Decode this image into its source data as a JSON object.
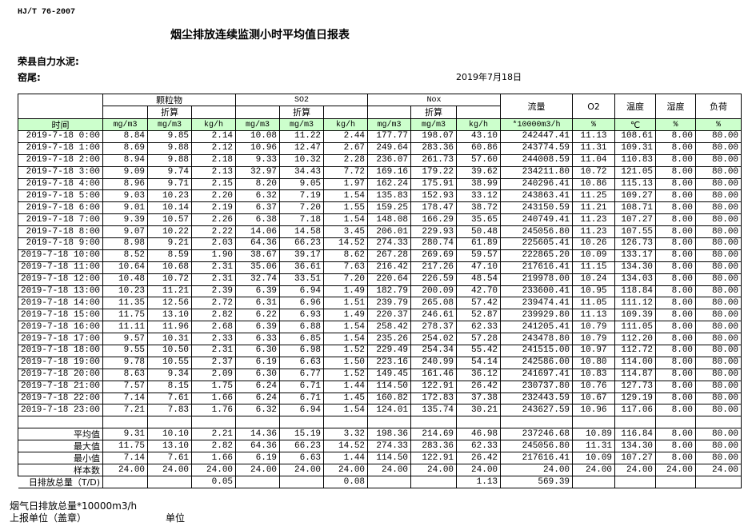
{
  "standard": "HJ/T  76-2007",
  "title": "烟尘排放连续监测小时平均值日报表",
  "company": "荣县自力水泥:",
  "kiln": "窑尾:",
  "date": "2019年7月18日",
  "header": {
    "particulate": "颗粒物",
    "so2": "SO2",
    "nox": "Nox",
    "converted": "折算",
    "flow": "流量",
    "o2": "O2",
    "temp": "温度",
    "humidity": "湿度",
    "load": "负荷",
    "time": "时间",
    "units": [
      "mg/m3",
      "mg/m3",
      "kg/h",
      "mg/m3",
      "mg/m3",
      "kg/h",
      "mg/m3",
      "mg/m3",
      "kg/h",
      "*10000m3/h",
      "%",
      "℃",
      "%",
      "%"
    ]
  },
  "rows": [
    [
      "2019-7-18 0:00",
      "8.84",
      "9.85",
      "2.14",
      "10.08",
      "11.22",
      "2.44",
      "177.77",
      "198.07",
      "43.10",
      "242447.41",
      "11.13",
      "108.61",
      "8.00",
      "80.00"
    ],
    [
      "2019-7-18 1:00",
      "8.69",
      "9.88",
      "2.12",
      "10.96",
      "12.47",
      "2.67",
      "249.64",
      "283.36",
      "60.86",
      "243774.59",
      "11.31",
      "109.31",
      "8.00",
      "80.00"
    ],
    [
      "2019-7-18 2:00",
      "8.94",
      "9.88",
      "2.18",
      "9.33",
      "10.32",
      "2.28",
      "236.07",
      "261.73",
      "57.60",
      "244008.59",
      "11.04",
      "110.83",
      "8.00",
      "80.00"
    ],
    [
      "2019-7-18 3:00",
      "9.09",
      "9.74",
      "2.13",
      "32.97",
      "34.43",
      "7.72",
      "169.16",
      "179.22",
      "39.62",
      "234211.80",
      "10.72",
      "121.05",
      "8.00",
      "80.00"
    ],
    [
      "2019-7-18 4:00",
      "8.96",
      "9.71",
      "2.15",
      "8.20",
      "9.05",
      "1.97",
      "162.24",
      "175.91",
      "38.99",
      "240296.41",
      "10.86",
      "115.13",
      "8.00",
      "80.00"
    ],
    [
      "2019-7-18 5:00",
      "9.03",
      "10.23",
      "2.20",
      "6.32",
      "7.19",
      "1.54",
      "135.83",
      "152.93",
      "33.12",
      "243863.41",
      "11.25",
      "109.27",
      "8.00",
      "80.00"
    ],
    [
      "2019-7-18 6:00",
      "9.01",
      "10.14",
      "2.19",
      "6.37",
      "7.20",
      "1.55",
      "159.25",
      "178.47",
      "38.72",
      "243150.59",
      "11.21",
      "108.71",
      "8.00",
      "80.00"
    ],
    [
      "2019-7-18 7:00",
      "9.39",
      "10.57",
      "2.26",
      "6.38",
      "7.18",
      "1.54",
      "148.08",
      "166.29",
      "35.65",
      "240749.41",
      "11.23",
      "107.27",
      "8.00",
      "80.00"
    ],
    [
      "2019-7-18 8:00",
      "9.07",
      "10.22",
      "2.22",
      "14.06",
      "14.58",
      "3.45",
      "206.01",
      "229.93",
      "50.48",
      "245056.80",
      "11.23",
      "107.55",
      "8.00",
      "80.00"
    ],
    [
      "2019-7-18 9:00",
      "8.98",
      "9.21",
      "2.03",
      "64.36",
      "66.23",
      "14.52",
      "274.33",
      "280.74",
      "61.89",
      "225605.41",
      "10.26",
      "126.73",
      "8.00",
      "80.00"
    ],
    [
      "2019-7-18 10:00",
      "8.52",
      "8.59",
      "1.90",
      "38.67",
      "39.17",
      "8.62",
      "267.28",
      "269.69",
      "59.57",
      "222865.20",
      "10.09",
      "133.17",
      "8.00",
      "80.00"
    ],
    [
      "2019-7-18 11:00",
      "10.64",
      "10.68",
      "2.31",
      "35.06",
      "36.61",
      "7.63",
      "216.42",
      "217.26",
      "47.10",
      "217616.41",
      "11.15",
      "134.30",
      "8.00",
      "80.00"
    ],
    [
      "2019-7-18 12:00",
      "10.48",
      "10.72",
      "2.31",
      "32.74",
      "33.51",
      "7.20",
      "220.64",
      "226.59",
      "48.54",
      "219978.00",
      "10.24",
      "134.03",
      "8.00",
      "80.00"
    ],
    [
      "2019-7-18 13:00",
      "10.23",
      "11.21",
      "2.39",
      "6.39",
      "6.94",
      "1.49",
      "182.79",
      "200.09",
      "42.70",
      "233600.41",
      "10.95",
      "118.84",
      "8.00",
      "80.00"
    ],
    [
      "2019-7-18 14:00",
      "11.35",
      "12.56",
      "2.72",
      "6.31",
      "6.96",
      "1.51",
      "239.79",
      "265.08",
      "57.42",
      "239474.41",
      "11.05",
      "111.12",
      "8.00",
      "80.00"
    ],
    [
      "2019-7-18 15:00",
      "11.75",
      "13.10",
      "2.82",
      "6.22",
      "6.93",
      "1.49",
      "220.37",
      "246.61",
      "52.87",
      "239929.80",
      "11.13",
      "109.39",
      "8.00",
      "80.00"
    ],
    [
      "2019-7-18 16:00",
      "11.11",
      "11.96",
      "2.68",
      "6.39",
      "6.88",
      "1.54",
      "258.42",
      "278.37",
      "62.33",
      "241205.41",
      "10.79",
      "111.05",
      "8.00",
      "80.00"
    ],
    [
      "2019-7-18 17:00",
      "9.57",
      "10.31",
      "2.33",
      "6.33",
      "6.85",
      "1.54",
      "235.26",
      "254.02",
      "57.28",
      "243478.80",
      "10.79",
      "112.20",
      "8.00",
      "80.00"
    ],
    [
      "2019-7-18 18:00",
      "9.55",
      "10.50",
      "2.31",
      "6.30",
      "6.98",
      "1.52",
      "229.49",
      "254.34",
      "55.42",
      "241515.00",
      "10.97",
      "112.72",
      "8.00",
      "80.00"
    ],
    [
      "2019-7-18 19:00",
      "9.78",
      "10.55",
      "2.37",
      "6.19",
      "6.63",
      "1.50",
      "223.16",
      "240.99",
      "54.14",
      "242586.00",
      "10.80",
      "114.00",
      "8.00",
      "80.00"
    ],
    [
      "2019-7-18 20:00",
      "8.63",
      "9.34",
      "2.09",
      "6.30",
      "6.77",
      "1.52",
      "149.45",
      "161.46",
      "36.12",
      "241697.41",
      "10.83",
      "114.87",
      "8.00",
      "80.00"
    ],
    [
      "2019-7-18 21:00",
      "7.57",
      "8.15",
      "1.75",
      "6.24",
      "6.71",
      "1.44",
      "114.50",
      "122.91",
      "26.42",
      "230737.80",
      "10.76",
      "127.73",
      "8.00",
      "80.00"
    ],
    [
      "2019-7-18 22:00",
      "7.14",
      "7.61",
      "1.66",
      "6.24",
      "6.71",
      "1.45",
      "160.82",
      "172.83",
      "37.38",
      "232443.59",
      "10.67",
      "129.19",
      "8.00",
      "80.00"
    ],
    [
      "2019-7-18 23:00",
      "7.21",
      "7.83",
      "1.76",
      "6.32",
      "6.94",
      "1.54",
      "124.01",
      "135.74",
      "30.21",
      "243627.59",
      "10.96",
      "117.06",
      "8.00",
      "80.00"
    ]
  ],
  "summary": [
    [
      "平均值",
      "9.31",
      "10.10",
      "2.21",
      "14.36",
      "15.19",
      "3.32",
      "198.36",
      "214.69",
      "46.98",
      "237246.68",
      "10.89",
      "116.84",
      "8.00",
      "80.00"
    ],
    [
      "最大值",
      "11.75",
      "13.10",
      "2.82",
      "64.36",
      "66.23",
      "14.52",
      "274.33",
      "283.36",
      "62.33",
      "245056.80",
      "11.31",
      "134.30",
      "8.00",
      "80.00"
    ],
    [
      "最小值",
      "7.14",
      "7.61",
      "1.66",
      "6.19",
      "6.63",
      "1.44",
      "114.50",
      "122.91",
      "26.42",
      "217616.41",
      "10.09",
      "107.27",
      "8.00",
      "80.00"
    ],
    [
      "样本数",
      "24.00",
      "24.00",
      "24.00",
      "24.00",
      "24.00",
      "24.00",
      "24.00",
      "24.00",
      "24.00",
      "24.00",
      "24.00",
      "24.00",
      "24.00",
      "24.00"
    ]
  ],
  "daily_total": {
    "label": "日排放总量（T/D)",
    "values": [
      "",
      "",
      "0.05",
      "",
      "",
      "0.08",
      "",
      "",
      "1.13",
      "569.39",
      "",
      "",
      "",
      ""
    ]
  },
  "footer": {
    "flue_gas": "烟气日排放总量*10000m3/h",
    "reporter": "上报单位（盖章）",
    "unit": "单位"
  },
  "colors": {
    "unit_row_bg": "#ccffcc"
  }
}
